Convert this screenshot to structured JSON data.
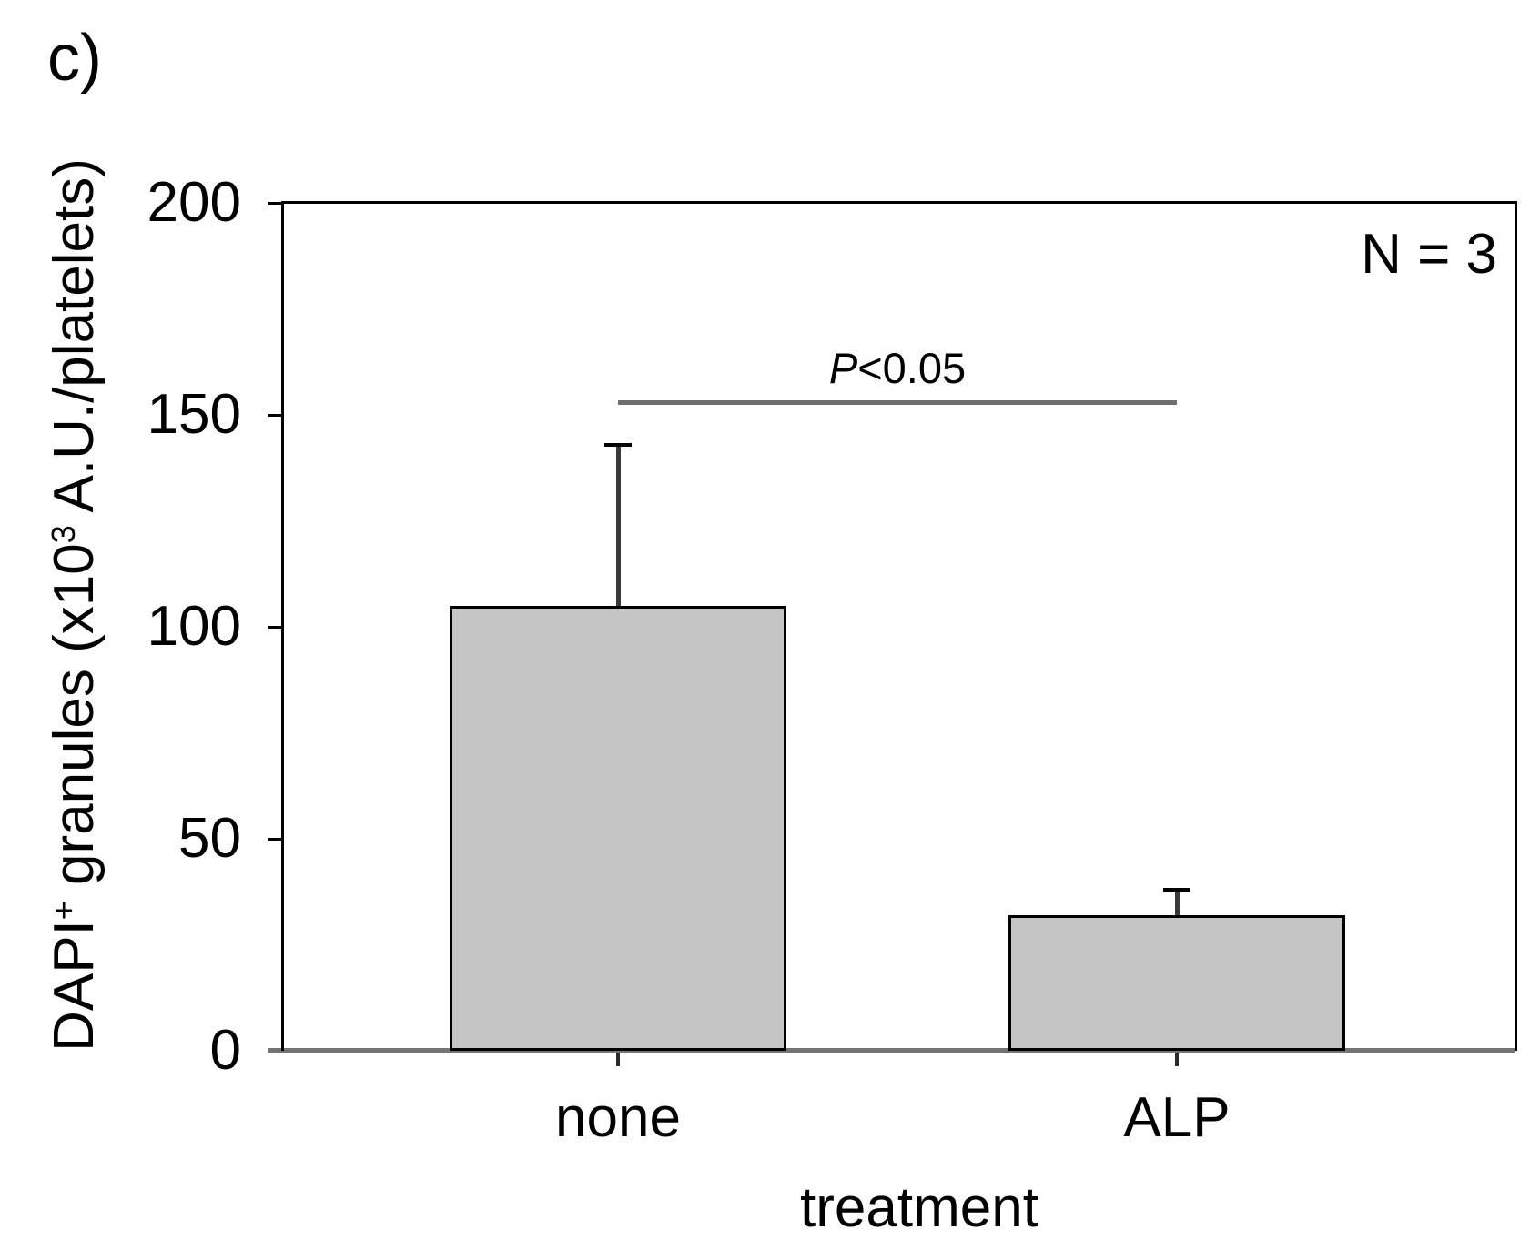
{
  "panel_label": "c)",
  "annotations": {
    "sample_size": "N = 3",
    "significance_italic": "P",
    "significance_rest": "<0.05"
  },
  "chart_data": {
    "type": "bar",
    "title": "",
    "xlabel": "treatment",
    "ylabel": "DAPI+ granules (x10^3 A.U./platelets)",
    "ylabel_parts": [
      {
        "t": "DAPI"
      },
      {
        "t": "+",
        "sup": true
      },
      {
        "t": " granules (x10"
      },
      {
        "t": "3",
        "sup": true
      },
      {
        "t": " A.U./platelets)"
      }
    ],
    "categories": [
      "none",
      "ALP"
    ],
    "values": [
      105,
      32
    ],
    "errors_plus": [
      38,
      6
    ],
    "ylim": [
      0,
      200
    ],
    "yticks": [
      0,
      50,
      100,
      150,
      200
    ],
    "grid": false,
    "legend": false,
    "bar_fill": "#c5c5c5",
    "bar_border": "#000000",
    "baseline_color": "#757575",
    "sig_line_color": "#6e6e6e",
    "significance": {
      "label": "P<0.05",
      "y": 153,
      "between": [
        "none",
        "ALP"
      ]
    },
    "sample_size": "N = 3"
  }
}
